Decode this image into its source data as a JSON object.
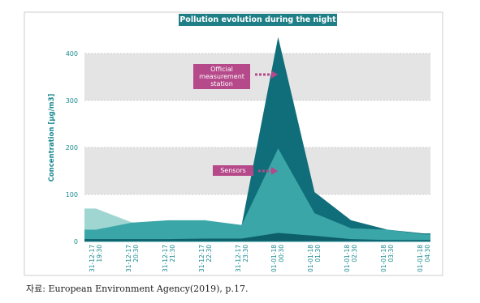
{
  "chart_data": {
    "type": "area",
    "title": "Pollution evolution during the night",
    "y_label": "Concentration [µg/m3]",
    "categories": [
      "31-12-17\n19:30",
      "31-12-17\n20:30",
      "31-12-17\n21:30",
      "31-12-17\n22:30",
      "31-12-17\n23:30",
      "01-01-18\n00:30",
      "01-01-18\n01:30",
      "01-01-18\n02:30",
      "01-01-18\n03:30",
      "01-01-18\n04:30"
    ],
    "series": [
      {
        "name": "Official measurement station",
        "color": "#0f6e79",
        "values": [
          25,
          40,
          30,
          40,
          35,
          435,
          105,
          45,
          25,
          17
        ]
      },
      {
        "color": "#9fd6d2",
        "values": [
          70,
          40,
          30,
          25,
          20,
          20,
          15,
          10,
          8,
          8
        ]
      },
      {
        "name": "Sensors",
        "color": "#3aa6a7",
        "values": [
          25,
          40,
          45,
          45,
          35,
          198,
          60,
          28,
          25,
          15
        ]
      },
      {
        "color": "#0d5f69",
        "values": [
          5,
          5,
          5,
          6,
          6,
          18,
          12,
          5,
          3,
          3
        ]
      }
    ],
    "ylim": [
      0,
      450
    ],
    "yticks": [
      0,
      100,
      200,
      300,
      400
    ],
    "grid": true,
    "source": "자료: European Environment Agency(2019), p.17."
  }
}
